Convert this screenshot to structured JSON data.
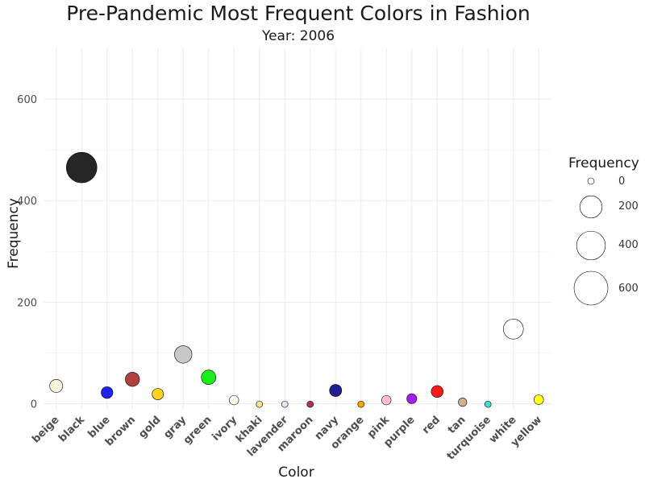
{
  "chart_data": {
    "type": "scatter",
    "title": "Pre-Pandemic Most Frequent Colors in Fashion",
    "subtitle": "Year: 2006",
    "xlabel": "Color",
    "ylabel": "Frequency",
    "ylim": [
      -10,
      700
    ],
    "yticks": [
      0,
      200,
      400,
      600
    ],
    "grid": true,
    "legend": {
      "title": "Frequency",
      "position": "right",
      "entries": [
        {
          "label": "0",
          "value": 0
        },
        {
          "label": "200",
          "value": 200
        },
        {
          "label": "400",
          "value": 400
        },
        {
          "label": "600",
          "value": 600
        }
      ]
    },
    "points": [
      {
        "category": "beige",
        "value": 35,
        "color": "#f5f5dc"
      },
      {
        "category": "black",
        "value": 465,
        "color": "#262626"
      },
      {
        "category": "blue",
        "value": 22,
        "color": "#2222ee"
      },
      {
        "category": "brown",
        "value": 48,
        "color": "#b0413e"
      },
      {
        "category": "gold",
        "value": 19,
        "color": "#ffd21f"
      },
      {
        "category": "gray",
        "value": 97,
        "color": "#c8c8c8"
      },
      {
        "category": "green",
        "value": 52,
        "color": "#1aee1a"
      },
      {
        "category": "ivory",
        "value": 7,
        "color": "#fffff0"
      },
      {
        "category": "khaki",
        "value": -1,
        "color": "#f0e68c"
      },
      {
        "category": "lavender",
        "value": -1,
        "color": "#e6e6fa"
      },
      {
        "category": "maroon",
        "value": -1,
        "color": "#b03060"
      },
      {
        "category": "navy",
        "value": 26,
        "color": "#1f1f8f"
      },
      {
        "category": "orange",
        "value": -1,
        "color": "#ffa500"
      },
      {
        "category": "pink",
        "value": 7,
        "color": "#ffc0cb"
      },
      {
        "category": "purple",
        "value": 10,
        "color": "#a020f0"
      },
      {
        "category": "red",
        "value": 24,
        "color": "#ff1a1a"
      },
      {
        "category": "tan",
        "value": 3,
        "color": "#d2b48c"
      },
      {
        "category": "turquoise",
        "value": -1,
        "color": "#40e0d0"
      },
      {
        "category": "white",
        "value": 147,
        "color": "#ffffff"
      },
      {
        "category": "yellow",
        "value": 8,
        "color": "#ffff1a"
      }
    ]
  }
}
